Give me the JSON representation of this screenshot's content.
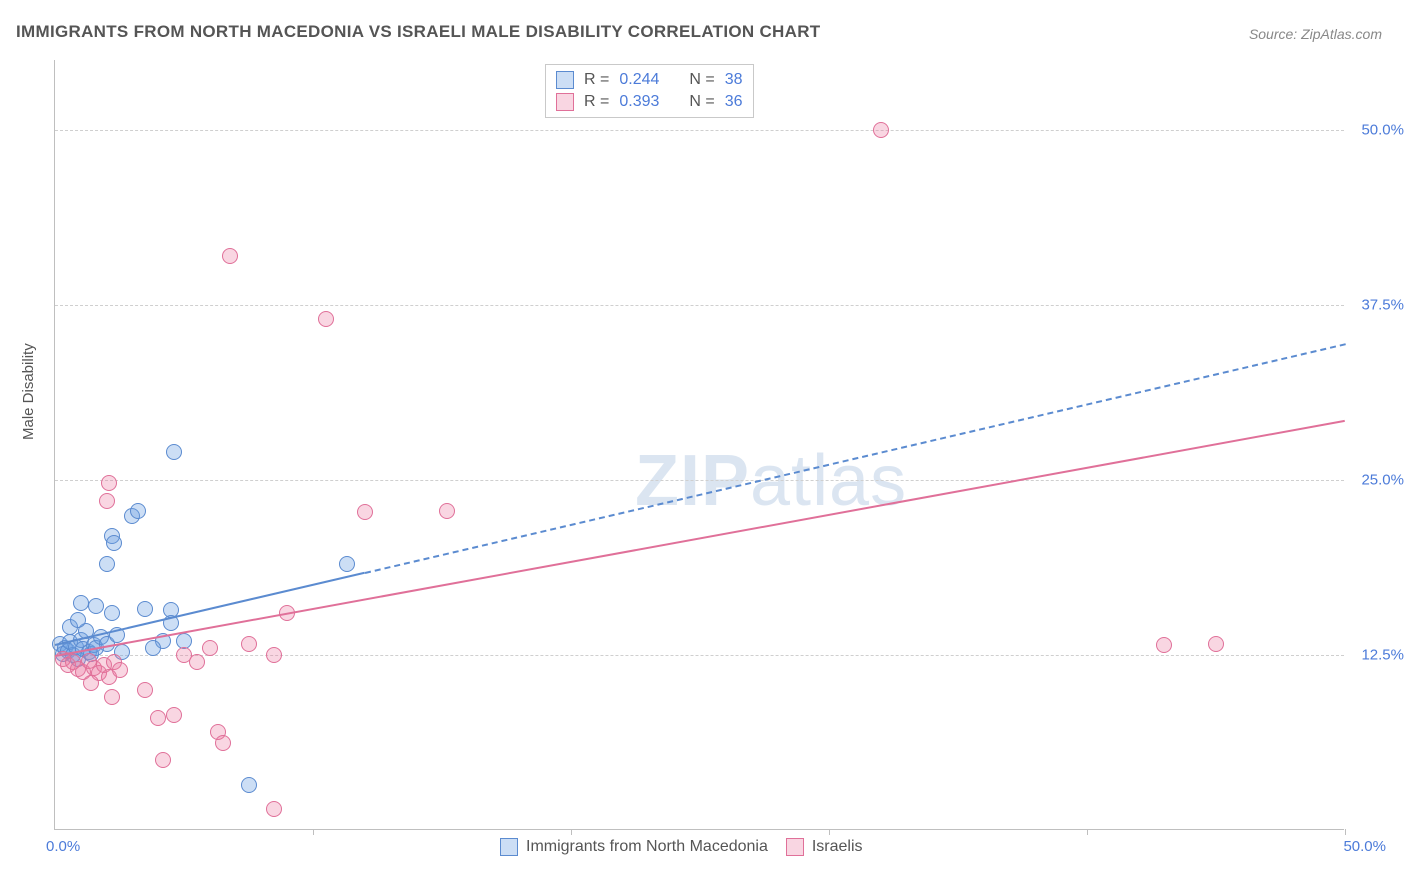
{
  "title": "IMMIGRANTS FROM NORTH MACEDONIA VS ISRAELI MALE DISABILITY CORRELATION CHART",
  "source": "Source: ZipAtlas.com",
  "y_axis_title": "Male Disability",
  "watermark_zip": "ZIP",
  "watermark_atlas": "atlas",
  "chart": {
    "type": "scatter",
    "xlim": [
      0,
      50
    ],
    "ylim": [
      0,
      55
    ],
    "x_origin_label": "0.0%",
    "x_max_label": "50.0%",
    "y_gridlines": [
      12.5,
      25.0,
      37.5,
      50.0
    ],
    "y_tick_labels": [
      "12.5%",
      "25.0%",
      "37.5%",
      "50.0%"
    ],
    "y_tick_color": "#4c7bd9",
    "x_tick_positions": [
      0,
      10,
      20,
      30,
      40,
      50
    ],
    "grid_color": "#cfcfcf",
    "background_color": "#ffffff",
    "axis_color": "#bfbfbf",
    "marker_radius": 8,
    "marker_border_width": 1.2,
    "series": [
      {
        "key": "macedonia",
        "label": "Immigrants from North Macedonia",
        "fill_color": "rgba(110,160,225,0.35)",
        "border_color": "#5b8bd0",
        "R": "0.244",
        "N": "38",
        "points": [
          [
            0.2,
            13.3
          ],
          [
            0.3,
            12.6
          ],
          [
            0.4,
            13.0
          ],
          [
            0.5,
            12.8
          ],
          [
            0.6,
            13.4
          ],
          [
            0.7,
            12.5
          ],
          [
            0.8,
            13.1
          ],
          [
            0.9,
            12.2
          ],
          [
            1.0,
            13.6
          ],
          [
            1.1,
            12.9
          ],
          [
            1.2,
            14.2
          ],
          [
            1.3,
            12.7
          ],
          [
            1.4,
            12.6
          ],
          [
            1.5,
            13.2
          ],
          [
            1.6,
            13.0
          ],
          [
            1.8,
            13.8
          ],
          [
            2.0,
            13.3
          ],
          [
            2.2,
            15.5
          ],
          [
            2.4,
            13.9
          ],
          [
            0.6,
            14.5
          ],
          [
            0.9,
            15.0
          ],
          [
            1.0,
            16.2
          ],
          [
            1.6,
            16.0
          ],
          [
            2.0,
            19.0
          ],
          [
            2.2,
            21.0
          ],
          [
            2.3,
            20.5
          ],
          [
            3.0,
            22.4
          ],
          [
            3.2,
            22.8
          ],
          [
            4.6,
            27.0
          ],
          [
            3.5,
            15.8
          ],
          [
            4.5,
            15.7
          ],
          [
            4.2,
            13.5
          ],
          [
            4.5,
            14.8
          ],
          [
            11.3,
            19.0
          ],
          [
            7.5,
            3.2
          ],
          [
            2.6,
            12.7
          ],
          [
            3.8,
            13.0
          ],
          [
            5.0,
            13.5
          ]
        ],
        "trend_line": {
          "x1": 0,
          "y1": 13.3,
          "x2": 50,
          "y2": 34.8,
          "solid_until_x": 12,
          "line_width": 2,
          "dash": "6,4"
        }
      },
      {
        "key": "israelis",
        "label": "Israelis",
        "fill_color": "rgba(236,120,160,0.30)",
        "border_color": "#e07099",
        "R": "0.393",
        "N": "36",
        "points": [
          [
            0.3,
            12.2
          ],
          [
            0.5,
            11.8
          ],
          [
            0.7,
            12.0
          ],
          [
            0.9,
            11.5
          ],
          [
            1.1,
            11.3
          ],
          [
            1.3,
            12.1
          ],
          [
            1.5,
            11.6
          ],
          [
            1.7,
            11.2
          ],
          [
            1.9,
            11.8
          ],
          [
            2.1,
            10.9
          ],
          [
            2.3,
            12.0
          ],
          [
            2.5,
            11.4
          ],
          [
            1.4,
            10.5
          ],
          [
            2.2,
            9.5
          ],
          [
            3.5,
            10.0
          ],
          [
            4.0,
            8.0
          ],
          [
            4.6,
            8.2
          ],
          [
            6.3,
            7.0
          ],
          [
            4.2,
            5.0
          ],
          [
            8.5,
            1.5
          ],
          [
            5.0,
            12.5
          ],
          [
            5.5,
            12.0
          ],
          [
            6.0,
            13.0
          ],
          [
            7.5,
            13.3
          ],
          [
            8.5,
            12.5
          ],
          [
            9.0,
            15.5
          ],
          [
            12.0,
            22.7
          ],
          [
            15.2,
            22.8
          ],
          [
            10.5,
            36.5
          ],
          [
            6.8,
            41.0
          ],
          [
            2.0,
            23.5
          ],
          [
            2.1,
            24.8
          ],
          [
            32.0,
            50.0
          ],
          [
            43.0,
            13.2
          ],
          [
            45.0,
            13.3
          ],
          [
            6.5,
            6.2
          ]
        ],
        "trend_line": {
          "x1": 0,
          "y1": 12.5,
          "x2": 50,
          "y2": 29.3,
          "solid_until_x": 50,
          "line_width": 2
        }
      }
    ]
  },
  "legend_top": {
    "rows": [
      {
        "swatch_fill": "rgba(110,160,225,0.35)",
        "swatch_border": "#5b8bd0",
        "r_label": "R =",
        "r_val": "0.244",
        "n_label": "N =",
        "n_val": "38"
      },
      {
        "swatch_fill": "rgba(236,120,160,0.30)",
        "swatch_border": "#e07099",
        "r_label": "R =",
        "r_val": "0.393",
        "n_label": "N =",
        "n_val": "36"
      }
    ],
    "value_color": "#4c7bd9"
  },
  "legend_bottom": {
    "items": [
      {
        "swatch_fill": "rgba(110,160,225,0.35)",
        "swatch_border": "#5b8bd0",
        "label": "Immigrants from North Macedonia"
      },
      {
        "swatch_fill": "rgba(236,120,160,0.30)",
        "swatch_border": "#e07099",
        "label": "Israelis"
      }
    ]
  }
}
